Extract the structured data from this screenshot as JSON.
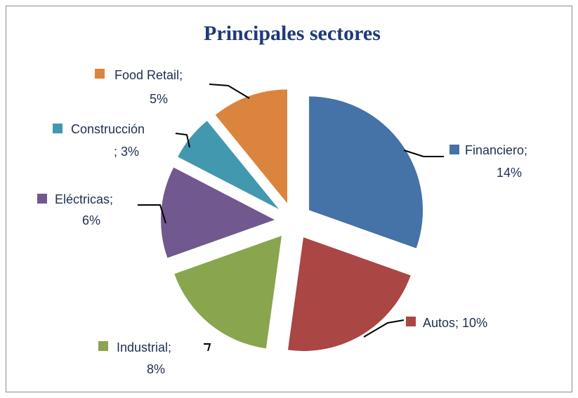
{
  "chart_data": {
    "type": "pie",
    "title": "Principales sectores",
    "categories": [
      "Financiero",
      "Autos",
      "Industrial",
      "Eléctricas",
      "Construcción",
      "Food Retail"
    ],
    "values": [
      14,
      10,
      8,
      6,
      3,
      5
    ],
    "value_labels": [
      "14%",
      "10%",
      "8%",
      "6%",
      "3%",
      "5%"
    ],
    "label_separator": ";",
    "colors": [
      "#4572a7",
      "#aa4643",
      "#89a54e",
      "#71588f",
      "#4198af",
      "#db843d"
    ],
    "exploded": true
  }
}
